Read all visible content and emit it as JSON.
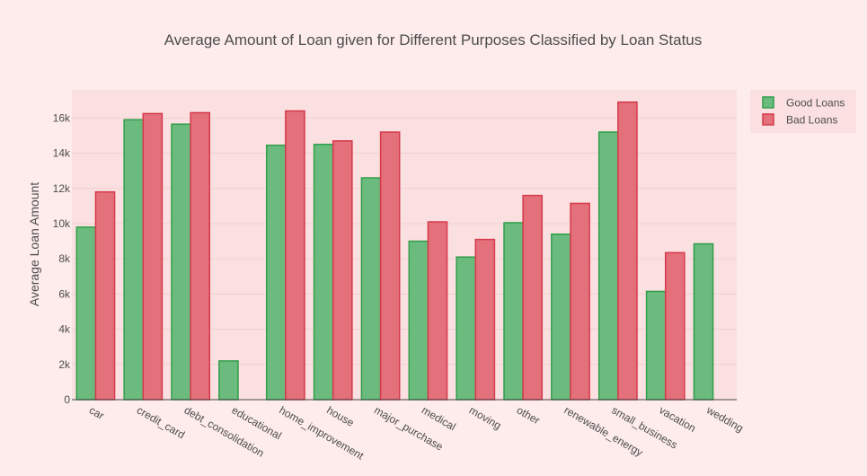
{
  "chart_data": {
    "type": "bar",
    "title": "Average Amount of Loan given for Different Purposes Classified by Loan Status",
    "xlabel": "",
    "ylabel": "Average Loan Amount",
    "ylim": [
      0,
      17600
    ],
    "yticks": [
      0,
      2000,
      4000,
      6000,
      8000,
      10000,
      12000,
      14000,
      16000
    ],
    "ytick_labels": [
      "0",
      "2k",
      "4k",
      "6k",
      "8k",
      "10k",
      "12k",
      "14k",
      "16k"
    ],
    "grid": true,
    "legend_position": "top-right",
    "categories": [
      "car",
      "credit_card",
      "debt_consolidation",
      "educational",
      "home_improvement",
      "house",
      "major_purchase",
      "medical",
      "moving",
      "other",
      "renewable_energy",
      "small_business",
      "vacation",
      "wedding"
    ],
    "series": [
      {
        "name": "Good Loans",
        "color": "#6cbb7e",
        "edge_color": "#2f9e4a",
        "values": [
          9800,
          15900,
          15650,
          2200,
          14450,
          14500,
          12600,
          9000,
          8100,
          10050,
          9400,
          15200,
          6150,
          8850
        ]
      },
      {
        "name": "Bad Loans",
        "color": "#e3707a",
        "edge_color": "#d63a4b",
        "values": [
          11800,
          16250,
          16300,
          null,
          16400,
          14700,
          15200,
          10100,
          9100,
          11600,
          11150,
          16900,
          8350,
          null
        ]
      }
    ]
  },
  "colors": {
    "page_bg": "#fdeceb",
    "plot_bg": "#fbe0e1",
    "legend_bg": "#fbe0e1",
    "grid": "#f1cfd0",
    "text": "#4d4d4d"
  }
}
